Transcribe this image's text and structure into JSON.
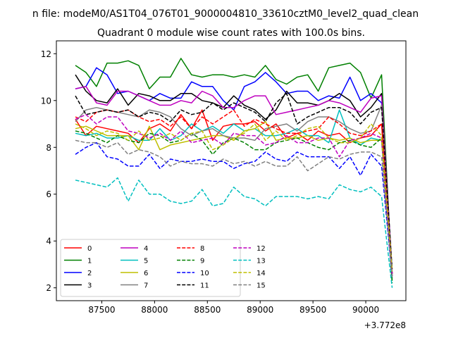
{
  "chart_data": {
    "type": "line",
    "suptitle": "n file: modeM0/AS1T04_076T01_9000004810_33610cztM0_level2_quad_clean",
    "title": "Quadrant 0 module wise count rates with 100.0s bins.",
    "xlabel": "",
    "ylabel": "",
    "x_offset_label": "+3.772e8",
    "xlim": [
      87070,
      90380
    ],
    "ylim": [
      1.45,
      12.55
    ],
    "x_ticks": [
      87500,
      88000,
      88500,
      89000,
      89500,
      90000
    ],
    "x_tick_labels": [
      "87500",
      "88000",
      "88500",
      "89000",
      "89500",
      "90000"
    ],
    "y_ticks": [
      2,
      4,
      6,
      8,
      10,
      12
    ],
    "y_tick_labels": [
      "2",
      "4",
      "6",
      "8",
      "10",
      "12"
    ],
    "legend_position": "lower-left",
    "legend_columns": 4,
    "x": [
      87250,
      87350,
      87450,
      87550,
      87650,
      87750,
      87850,
      87950,
      88050,
      88150,
      88250,
      88350,
      88450,
      88550,
      88650,
      88750,
      88850,
      88950,
      89050,
      89150,
      89250,
      89350,
      89450,
      89550,
      89650,
      89750,
      89850,
      89950,
      90050,
      90150,
      90250
    ],
    "series": [
      {
        "name": "0",
        "color": "#ff0000",
        "dash": "solid",
        "values": [
          9.2,
          8.5,
          8.9,
          8.8,
          8.7,
          8.6,
          8.2,
          8.8,
          9.0,
          8.7,
          9.4,
          8.8,
          9.6,
          8.3,
          8.9,
          9.0,
          9.0,
          9.1,
          8.7,
          9.0,
          8.4,
          8.6,
          8.3,
          8.7,
          8.5,
          8.6,
          8.2,
          8.4,
          8.5,
          9.0,
          2.5
        ]
      },
      {
        "name": "1",
        "color": "#008000",
        "dash": "solid",
        "values": [
          11.5,
          11.2,
          10.6,
          11.6,
          11.6,
          11.7,
          11.5,
          10.5,
          11.0,
          11.0,
          11.8,
          11.1,
          11.0,
          11.1,
          11.1,
          11.0,
          11.1,
          11.0,
          11.5,
          10.9,
          10.7,
          11.0,
          11.1,
          10.4,
          11.4,
          11.5,
          11.6,
          11.2,
          10.1,
          11.1,
          2.3
        ]
      },
      {
        "name": "2",
        "color": "#0000ff",
        "dash": "solid",
        "values": [
          10.5,
          10.6,
          11.4,
          11.1,
          10.3,
          10.4,
          10.2,
          10.0,
          10.3,
          10.1,
          10.1,
          10.8,
          10.6,
          10.6,
          10.0,
          9.6,
          10.6,
          10.8,
          11.2,
          10.8,
          10.3,
          10.4,
          10.4,
          10.0,
          10.2,
          10.1,
          11.0,
          10.0,
          10.3,
          9.9,
          2.6
        ]
      },
      {
        "name": "3",
        "color": "#000000",
        "dash": "solid",
        "values": [
          11.1,
          10.4,
          10.0,
          9.9,
          10.5,
          9.8,
          10.3,
          10.2,
          10.0,
          10.0,
          10.3,
          10.3,
          10.0,
          9.9,
          9.7,
          10.2,
          9.8,
          9.6,
          9.2,
          9.6,
          10.4,
          9.9,
          9.9,
          9.8,
          10.0,
          10.3,
          10.0,
          9.3,
          9.7,
          10.3,
          2.6
        ]
      },
      {
        "name": "4",
        "color": "#bf00bf",
        "dash": "solid",
        "values": [
          10.5,
          10.6,
          9.9,
          9.8,
          10.4,
          10.4,
          10.2,
          10.0,
          9.8,
          9.8,
          10.0,
          9.9,
          10.4,
          10.2,
          9.7,
          9.7,
          10.0,
          10.2,
          10.2,
          9.4,
          9.5,
          9.6,
          9.7,
          9.8,
          10.0,
          9.9,
          9.7,
          9.5,
          10.1,
          10.2,
          2.6
        ]
      },
      {
        "name": "5",
        "color": "#00bfbf",
        "dash": "solid",
        "values": [
          8.6,
          8.5,
          8.6,
          8.4,
          8.4,
          8.5,
          8.3,
          8.3,
          8.8,
          8.3,
          8.5,
          9.0,
          8.7,
          8.9,
          8.6,
          9.0,
          8.7,
          8.8,
          8.5,
          8.5,
          8.6,
          8.8,
          8.5,
          8.5,
          8.2,
          9.6,
          8.4,
          8.1,
          8.4,
          8.3,
          2.4
        ]
      },
      {
        "name": "6",
        "color": "#bfbf00",
        "dash": "solid",
        "values": [
          8.8,
          8.9,
          8.7,
          8.5,
          8.5,
          8.5,
          7.9,
          8.9,
          7.9,
          8.1,
          8.2,
          8.3,
          8.4,
          8.5,
          8.5,
          8.3,
          8.7,
          8.8,
          9.1,
          8.3,
          8.4,
          8.4,
          8.5,
          8.3,
          8.4,
          8.3,
          8.4,
          8.2,
          8.3,
          8.3,
          2.5
        ]
      },
      {
        "name": "7",
        "color": "#808080",
        "dash": "solid",
        "values": [
          9.1,
          9.6,
          9.7,
          9.6,
          9.5,
          9.4,
          9.3,
          9.6,
          9.5,
          9.3,
          8.8,
          8.5,
          8.7,
          8.8,
          8.5,
          8.4,
          8.4,
          8.3,
          8.8,
          8.9,
          9.0,
          8.7,
          9.1,
          9.3,
          9.3,
          9.1,
          8.8,
          8.6,
          8.7,
          9.8,
          2.4
        ]
      },
      {
        "name": "8",
        "color": "#ff0000",
        "dash": "dashed",
        "values": [
          9.3,
          9.1,
          9.5,
          9.6,
          9.5,
          9.6,
          9.3,
          9.1,
          9.2,
          8.9,
          9.3,
          8.8,
          9.3,
          9.0,
          9.3,
          9.6,
          8.9,
          9.2,
          9.0,
          8.8,
          8.6,
          8.6,
          8.7,
          8.8,
          9.3,
          9.0,
          8.6,
          8.5,
          8.7,
          9.0,
          2.6
        ]
      },
      {
        "name": "9",
        "color": "#008000",
        "dash": "dashed",
        "values": [
          8.7,
          8.6,
          8.4,
          8.2,
          8.5,
          8.3,
          8.2,
          8.6,
          8.5,
          8.2,
          8.3,
          8.6,
          8.3,
          7.7,
          8.2,
          8.4,
          8.2,
          7.9,
          7.9,
          8.2,
          8.3,
          8.4,
          8.2,
          8.0,
          7.9,
          8.2,
          8.3,
          8.1,
          8.0,
          8.4,
          2.2
        ]
      },
      {
        "name": "10",
        "color": "#0000ff",
        "dash": "dashed",
        "values": [
          7.7,
          8.0,
          8.2,
          7.6,
          7.5,
          7.2,
          7.2,
          7.7,
          7.1,
          7.5,
          7.4,
          7.4,
          7.5,
          7.4,
          7.4,
          7.1,
          7.3,
          7.4,
          7.8,
          7.5,
          7.4,
          7.8,
          7.6,
          7.6,
          7.6,
          7.1,
          7.6,
          6.8,
          7.7,
          7.2,
          2.5
        ]
      },
      {
        "name": "11",
        "color": "#000000",
        "dash": "dashed",
        "values": [
          10.2,
          9.4,
          9.5,
          9.6,
          9.5,
          9.6,
          9.3,
          9.5,
          9.4,
          9.1,
          9.6,
          9.4,
          9.5,
          9.9,
          9.6,
          9.9,
          9.7,
          9.5,
          9.1,
          9.9,
          10.3,
          9.0,
          9.3,
          9.5,
          9.7,
          9.7,
          9.5,
          9.0,
          9.5,
          9.7,
          2.8
        ]
      },
      {
        "name": "12",
        "color": "#bf00bf",
        "dash": "dashed",
        "values": [
          9.2,
          9.4,
          9.0,
          9.3,
          9.3,
          8.7,
          8.6,
          8.4,
          8.6,
          8.3,
          8.7,
          8.2,
          8.3,
          8.4,
          8.1,
          8.6,
          8.5,
          8.5,
          8.1,
          8.2,
          8.5,
          8.2,
          8.2,
          8.4,
          8.4,
          7.6,
          8.3,
          8.4,
          8.6,
          8.4,
          2.5
        ]
      },
      {
        "name": "13",
        "color": "#00bfbf",
        "dash": "dashed",
        "values": [
          6.6,
          6.5,
          6.4,
          6.3,
          6.7,
          5.7,
          6.6,
          6.0,
          6.0,
          5.7,
          5.6,
          5.7,
          6.2,
          5.5,
          5.6,
          6.3,
          5.9,
          5.8,
          5.5,
          5.9,
          5.9,
          5.9,
          5.8,
          5.9,
          5.8,
          6.4,
          6.2,
          6.1,
          6.3,
          5.9,
          2.0
        ]
      },
      {
        "name": "14",
        "color": "#bfbf00",
        "dash": "dashed",
        "values": [
          9.0,
          8.8,
          8.5,
          8.7,
          8.6,
          8.3,
          8.7,
          8.3,
          8.4,
          8.6,
          8.3,
          8.6,
          8.7,
          7.9,
          8.1,
          8.4,
          8.6,
          9.0,
          8.3,
          8.7,
          8.3,
          8.5,
          8.8,
          8.9,
          8.4,
          8.2,
          8.2,
          8.4,
          9.0,
          8.5,
          2.7
        ]
      },
      {
        "name": "15",
        "color": "#808080",
        "dash": "dashed",
        "values": [
          8.3,
          8.2,
          8.2,
          8.0,
          8.2,
          7.7,
          7.9,
          7.8,
          7.6,
          7.2,
          7.4,
          7.3,
          7.3,
          7.2,
          7.5,
          7.3,
          7.4,
          7.2,
          7.4,
          7.2,
          7.2,
          7.6,
          7.0,
          7.3,
          7.6,
          7.5,
          7.7,
          7.8,
          7.8,
          7.6,
          2.5
        ]
      }
    ]
  }
}
